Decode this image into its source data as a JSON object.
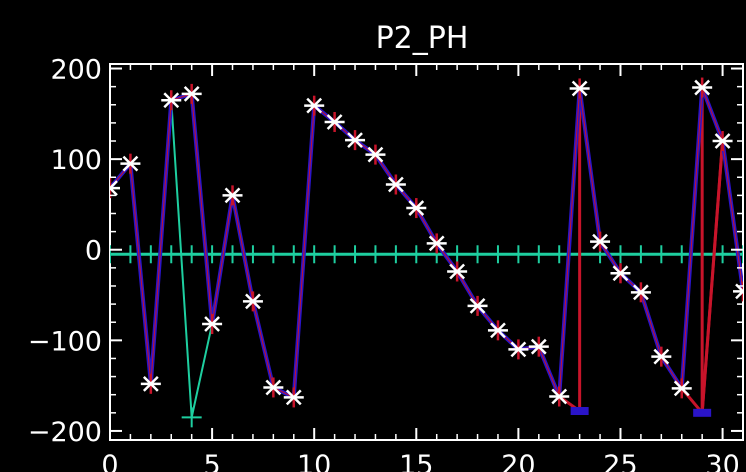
{
  "chart_data": {
    "type": "line",
    "title": "P2_PH",
    "xlabel": "",
    "ylabel": "",
    "xlim": [
      0,
      31
    ],
    "ylim": [
      -210,
      205
    ],
    "x_ticks": [
      "0",
      "5",
      "10",
      "15",
      "20",
      "25",
      "30"
    ],
    "y_ticks": [
      "200",
      "100",
      "0",
      "−100",
      "−200"
    ],
    "grid": false,
    "legend": "none",
    "colors": {
      "background": "#000000",
      "axes": "#ffffff",
      "text": "#ffffff",
      "marker": "#ffffff",
      "series_primary": "#2a14c8",
      "series_red": "#c8142a",
      "series_cyan": "#1ecfa0",
      "zero_line": "#1ecfa0"
    },
    "series": [
      {
        "values": [
          [
            0,
            68
          ],
          [
            1,
            95
          ],
          [
            2,
            -148
          ],
          [
            3,
            165
          ],
          [
            4,
            172
          ],
          [
            5,
            -82
          ],
          [
            6,
            60
          ],
          [
            7,
            -57
          ],
          [
            8,
            -152
          ],
          [
            9,
            -163
          ],
          [
            10,
            159
          ],
          [
            11,
            141
          ],
          [
            12,
            121
          ],
          [
            13,
            105
          ],
          [
            14,
            72
          ],
          [
            15,
            46
          ],
          [
            16,
            7
          ],
          [
            17,
            -24
          ],
          [
            18,
            -62
          ],
          [
            19,
            -89
          ],
          [
            20,
            -110
          ],
          [
            21,
            -107
          ],
          [
            22,
            -162
          ],
          [
            23,
            178
          ],
          [
            24,
            9
          ],
          [
            25,
            -26
          ],
          [
            26,
            -47
          ],
          [
            27,
            -118
          ],
          [
            28,
            -153
          ],
          [
            29,
            179
          ],
          [
            30,
            120
          ],
          [
            31,
            -46
          ]
        ]
      },
      {
        "values": [
          [
            22,
            -162
          ],
          [
            23,
            -178
          ],
          [
            23,
            178
          ],
          [
            28,
            -153
          ],
          [
            29,
            -180
          ],
          [
            29,
            179
          ],
          [
            29,
            -180
          ],
          [
            30,
            120
          ]
        ]
      },
      {
        "values": [
          [
            0,
            68
          ],
          [
            1,
            95
          ],
          [
            2,
            -148
          ],
          [
            3,
            165
          ],
          [
            4,
            -185
          ],
          [
            5,
            -82
          ],
          [
            6,
            60
          ],
          [
            7,
            -57
          ],
          [
            8,
            -152
          ],
          [
            9,
            -163
          ],
          [
            10,
            159
          ],
          [
            11,
            141
          ],
          [
            12,
            121
          ],
          [
            13,
            105
          ],
          [
            14,
            72
          ],
          [
            15,
            46
          ],
          [
            16,
            7
          ],
          [
            17,
            -24
          ],
          [
            18,
            -62
          ],
          [
            19,
            -89
          ],
          [
            20,
            -110
          ],
          [
            21,
            -107
          ],
          [
            22,
            -162
          ],
          [
            23,
            178
          ],
          [
            24,
            9
          ],
          [
            25,
            -26
          ],
          [
            26,
            -47
          ],
          [
            27,
            -118
          ],
          [
            28,
            -153
          ],
          [
            29,
            179
          ],
          [
            30,
            120
          ],
          [
            31,
            -46
          ]
        ]
      },
      {
        "values": [
          [
            0,
            -5
          ],
          [
            1,
            -5
          ],
          [
            2,
            -5
          ],
          [
            3,
            -5
          ],
          [
            4,
            -5
          ],
          [
            5,
            -5
          ],
          [
            6,
            -5
          ],
          [
            7,
            -5
          ],
          [
            8,
            -5
          ],
          [
            9,
            -5
          ],
          [
            10,
            -5
          ],
          [
            11,
            -5
          ],
          [
            12,
            -5
          ],
          [
            13,
            -5
          ],
          [
            14,
            -5
          ],
          [
            15,
            -5
          ],
          [
            16,
            -5
          ],
          [
            17,
            -5
          ],
          [
            18,
            -5
          ],
          [
            19,
            -5
          ],
          [
            20,
            -5
          ],
          [
            21,
            -5
          ],
          [
            22,
            -5
          ],
          [
            23,
            -5
          ],
          [
            24,
            -5
          ],
          [
            25,
            -5
          ],
          [
            26,
            -5
          ],
          [
            27,
            -5
          ],
          [
            28,
            -5
          ],
          [
            29,
            -5
          ],
          [
            30,
            -5
          ],
          [
            31,
            -5
          ]
        ]
      }
    ]
  }
}
